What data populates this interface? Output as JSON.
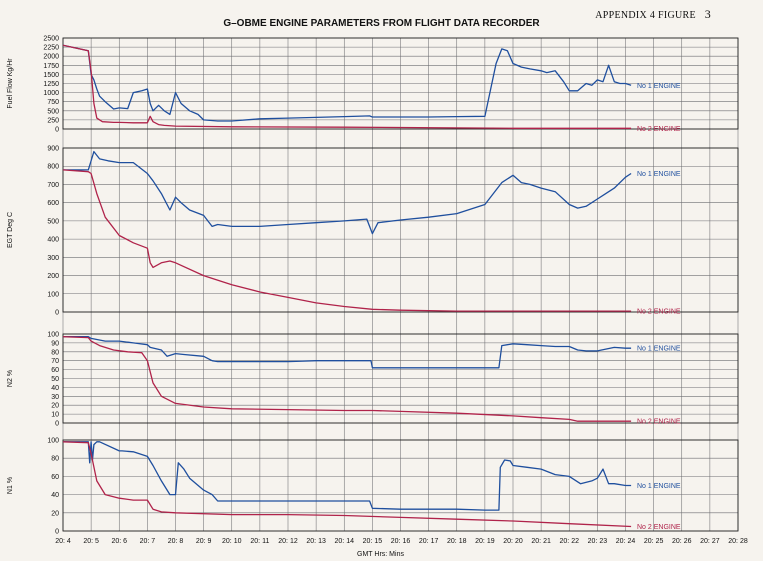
{
  "appendix_label": "APPENDIX 4  FIGURE",
  "figure_number": "3",
  "title": "G–OBME ENGINE PARAMETERS FROM FLIGHT DATA RECORDER",
  "colors": {
    "no1": "#1f4f9e",
    "no2": "#b0234a",
    "grid": "#6e6e72"
  },
  "chart_data": {
    "type": "line",
    "xlabel": "GMT Hrs: Mins",
    "x_ticks": [
      "20: 4",
      "20: 5",
      "20: 6",
      "20: 7",
      "20: 8",
      "20: 9",
      "20: 10",
      "20: 11",
      "20: 12",
      "20: 13",
      "20: 14",
      "20: 15",
      "20: 16",
      "20: 17",
      "20: 18",
      "20: 19",
      "20: 20",
      "20: 21",
      "20: 22",
      "20: 23",
      "20: 24",
      "20: 25",
      "20: 26",
      "20: 27",
      "20: 28"
    ],
    "xlim": [
      4,
      28
    ],
    "panels": [
      {
        "ylabel": "Fuel Flow Kg/Hr",
        "ylim": [
          0,
          2500
        ],
        "y_ticks": [
          "0",
          "250",
          "500",
          "750",
          "1000",
          "1250",
          "1500",
          "1750",
          "2000",
          "2250",
          "2500"
        ],
        "series": [
          {
            "name": "No 1 ENGINE",
            "x": [
              4.0,
              4.9,
              5.0,
              5.1,
              5.2,
              5.3,
              5.5,
              5.8,
              6.0,
              6.3,
              6.5,
              6.8,
              7.0,
              7.1,
              7.2,
              7.4,
              7.6,
              7.8,
              8.0,
              8.2,
              8.5,
              8.8,
              9.0,
              9.5,
              10,
              11,
              12,
              13,
              14,
              14.9,
              15,
              16,
              17,
              18,
              19,
              19.4,
              19.6,
              19.8,
              20.0,
              20.3,
              20.6,
              21.0,
              21.2,
              21.5,
              21.8,
              22.0,
              22.3,
              22.6,
              22.8,
              23.0,
              23.2,
              23.4,
              23.6,
              23.8,
              24.0,
              24.2
            ],
            "y": [
              2300,
              2150,
              1500,
              1350,
              1100,
              900,
              750,
              550,
              580,
              560,
              1000,
              1050,
              1100,
              700,
              500,
              650,
              500,
              400,
              1000,
              700,
              500,
              400,
              250,
              220,
              220,
              280,
              300,
              320,
              340,
              360,
              330,
              330,
              330,
              340,
              350,
              1800,
              2200,
              2150,
              1800,
              1700,
              1650,
              1600,
              1550,
              1600,
              1300,
              1050,
              1050,
              1250,
              1200,
              1350,
              1300,
              1750,
              1300,
              1250,
              1250,
              1200
            ]
          },
          {
            "name": "No 2 ENGINE",
            "x": [
              4.0,
              4.9,
              5.0,
              5.1,
              5.2,
              5.4,
              5.8,
              6.0,
              6.5,
              7.0,
              7.1,
              7.2,
              7.4,
              7.6,
              8,
              10,
              14,
              16,
              20,
              24.2
            ],
            "y": [
              2300,
              2150,
              1600,
              700,
              300,
              200,
              180,
              180,
              170,
              170,
              350,
              200,
              120,
              100,
              80,
              60,
              50,
              40,
              20,
              20
            ]
          }
        ]
      },
      {
        "ylabel": "EGT Deg C",
        "ylim": [
          0,
          900
        ],
        "y_ticks": [
          "0",
          "100",
          "200",
          "300",
          "400",
          "500",
          "600",
          "700",
          "800",
          "900"
        ],
        "series": [
          {
            "name": "No 1 ENGINE",
            "x": [
              4.0,
              4.9,
              5.0,
              5.1,
              5.3,
              5.6,
              6.0,
              6.5,
              7.0,
              7.2,
              7.5,
              7.8,
              8.0,
              8.2,
              8.5,
              9.0,
              9.3,
              9.5,
              10,
              11,
              12,
              13,
              14,
              14.8,
              15.0,
              15.2,
              16,
              17,
              18,
              19,
              19.6,
              20.0,
              20.3,
              20.6,
              21.0,
              21.5,
              22.0,
              22.3,
              22.6,
              23.0,
              23.3,
              23.6,
              24.0,
              24.2
            ],
            "y": [
              780,
              780,
              830,
              880,
              840,
              830,
              820,
              820,
              760,
              720,
              650,
              560,
              630,
              600,
              560,
              530,
              470,
              480,
              470,
              470,
              480,
              490,
              500,
              510,
              430,
              490,
              505,
              520,
              540,
              590,
              710,
              750,
              710,
              700,
              680,
              660,
              590,
              570,
              580,
              620,
              650,
              680,
              740,
              760
            ]
          },
          {
            "name": "No 2 ENGINE",
            "x": [
              4.0,
              4.9,
              5.0,
              5.2,
              5.5,
              6.0,
              6.5,
              7.0,
              7.1,
              7.2,
              7.5,
              7.8,
              8.0,
              9,
              10,
              11,
              12,
              13,
              14,
              15,
              16,
              18,
              20,
              24.2
            ],
            "y": [
              780,
              770,
              760,
              650,
              520,
              420,
              380,
              350,
              270,
              245,
              270,
              280,
              270,
              200,
              150,
              110,
              80,
              50,
              30,
              15,
              10,
              5,
              5,
              5
            ]
          }
        ]
      },
      {
        "ylabel": "N2 %",
        "ylim": [
          0,
          100
        ],
        "y_ticks": [
          "0",
          "10",
          "20",
          "30",
          "40",
          "50",
          "60",
          "70",
          "80",
          "90",
          "100"
        ],
        "series": [
          {
            "name": "No 1 ENGINE",
            "x": [
              4.0,
              4.9,
              5.0,
              5.5,
              6.0,
              6.5,
              7.0,
              7.1,
              7.5,
              7.7,
              8.0,
              8.3,
              9.0,
              9.3,
              9.5,
              10,
              11,
              12,
              13,
              14,
              14.95,
              15.0,
              16,
              17,
              18,
              19,
              19.5,
              19.6,
              20.0,
              20.5,
              21,
              21.5,
              22,
              22.3,
              22.6,
              23.0,
              23.3,
              23.6,
              24.0,
              24.2
            ],
            "y": [
              97,
              97,
              95,
              92,
              92,
              90,
              88,
              85,
              82,
              75,
              78,
              77,
              75,
              70,
              69,
              69,
              69,
              69,
              70,
              70,
              70,
              62,
              62,
              62,
              62,
              62,
              62,
              87,
              89,
              88,
              87,
              86,
              86,
              82,
              81,
              81,
              83,
              85,
              84,
              84
            ]
          },
          {
            "name": "No 2 ENGINE",
            "x": [
              4.0,
              4.9,
              5.0,
              5.3,
              5.8,
              6.3,
              6.8,
              7.0,
              7.2,
              7.5,
              8,
              9,
              10,
              12,
              14,
              15,
              16,
              18,
              20,
              21,
              22,
              22.3,
              24.2
            ],
            "y": [
              97,
              96,
              92,
              87,
              82,
              80,
              79,
              70,
              45,
              30,
              22,
              18,
              16,
              15,
              14,
              14,
              13,
              11,
              8,
              6,
              4,
              2,
              2
            ]
          }
        ]
      },
      {
        "ylabel": "N1 %",
        "ylim": [
          0,
          100
        ],
        "y_ticks": [
          "0",
          "20",
          "40",
          "60",
          "80",
          "100"
        ],
        "series": [
          {
            "name": "No 1 ENGINE",
            "x": [
              4.0,
              4.9,
              4.95,
              5.0,
              5.05,
              5.1,
              5.2,
              5.3,
              6.0,
              6.1,
              6.5,
              7.0,
              7.2,
              7.5,
              7.8,
              8.0,
              8.1,
              8.3,
              8.5,
              9.0,
              9.3,
              9.5,
              10,
              11,
              12,
              13,
              14,
              14.9,
              15.0,
              16,
              17,
              18,
              19,
              19.5,
              19.55,
              19.7,
              19.9,
              20.0,
              20.5,
              21,
              21.5,
              22,
              22.4,
              22.8,
              23.0,
              23.2,
              23.4,
              23.6,
              24.0,
              24.2
            ],
            "y": [
              98,
              98,
              75,
              98,
              78,
              95,
              98,
              98,
              88,
              88,
              87,
              82,
              72,
              55,
              40,
              40,
              75,
              68,
              58,
              45,
              40,
              33,
              33,
              33,
              33,
              33,
              33,
              33,
              25,
              24,
              24,
              24,
              23,
              23,
              70,
              78,
              77,
              72,
              70,
              68,
              62,
              60,
              52,
              55,
              58,
              68,
              52,
              52,
              50,
              50
            ]
          },
          {
            "name": "No 2 ENGINE",
            "x": [
              4.0,
              4.9,
              5.0,
              5.2,
              5.5,
              6.0,
              6.5,
              7.0,
              7.2,
              7.5,
              8,
              10,
              12,
              14,
              16,
              18,
              20,
              22,
              24.2
            ],
            "y": [
              98,
              97,
              85,
              55,
              40,
              36,
              34,
              34,
              24,
              21,
              20,
              18,
              18,
              17,
              15,
              13,
              11,
              8,
              5
            ]
          }
        ]
      }
    ]
  }
}
